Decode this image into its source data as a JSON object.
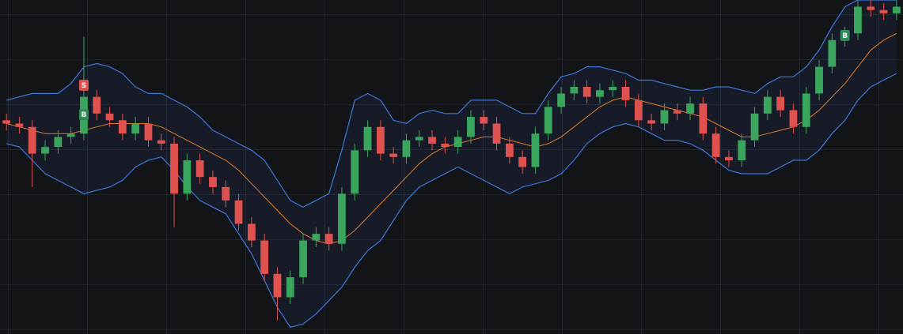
{
  "chart_data": {
    "type": "candlestick",
    "x": [
      0,
      1,
      2,
      3,
      4,
      5,
      6,
      7,
      8,
      9,
      10,
      11,
      12,
      13,
      14,
      15,
      16,
      17,
      18,
      19,
      20,
      21,
      22,
      23,
      24,
      25,
      26,
      27,
      28,
      29,
      30,
      31,
      32,
      33,
      34,
      35,
      36,
      37,
      38,
      39,
      40,
      41,
      42,
      43,
      44,
      45,
      46,
      47,
      48,
      49,
      50,
      51,
      52,
      53,
      54,
      55,
      56,
      57,
      58,
      59,
      60,
      61,
      62,
      63,
      64,
      65,
      66,
      67,
      68,
      69
    ],
    "open": [
      64,
      63,
      62,
      54,
      56,
      59,
      60,
      71,
      66,
      64,
      60,
      63,
      58,
      57,
      42,
      52,
      47,
      44,
      40,
      33,
      28,
      18,
      11,
      17,
      28,
      30,
      27,
      42,
      55,
      62,
      54,
      53,
      58,
      59,
      57,
      56,
      59,
      65,
      63,
      57,
      53,
      50,
      60,
      68,
      72,
      74,
      71,
      73,
      74,
      70,
      64,
      63,
      67,
      66,
      69,
      60,
      53,
      52,
      58,
      66,
      71,
      67,
      62,
      72,
      80,
      88,
      90,
      98,
      97,
      96
    ],
    "high": [
      66,
      65,
      64,
      58,
      61,
      62,
      89,
      73,
      68,
      66,
      65,
      65,
      60,
      59,
      54,
      54,
      49,
      46,
      42,
      35,
      30,
      20,
      19,
      30,
      32,
      32,
      44,
      57,
      64,
      64,
      56,
      60,
      61,
      61,
      59,
      61,
      67,
      67,
      65,
      59,
      55,
      62,
      70,
      74,
      76,
      76,
      75,
      76,
      76,
      72,
      66,
      69,
      69,
      71,
      71,
      62,
      55,
      60,
      68,
      73,
      73,
      69,
      74,
      82,
      90,
      92,
      100,
      100,
      99,
      100
    ],
    "low": [
      61,
      60,
      44,
      52,
      54,
      57,
      58,
      64,
      62,
      58,
      58,
      56,
      55,
      32,
      40,
      45,
      42,
      38,
      31,
      26,
      16,
      4,
      9,
      15,
      26,
      25,
      25,
      40,
      53,
      52,
      51,
      51,
      56,
      55,
      54,
      54,
      57,
      61,
      55,
      51,
      48,
      48,
      58,
      66,
      70,
      69,
      69,
      71,
      68,
      62,
      61,
      61,
      64,
      64,
      58,
      51,
      50,
      50,
      56,
      64,
      65,
      60,
      60,
      70,
      78,
      86,
      88,
      95,
      94,
      94
    ],
    "close": [
      63,
      62,
      54,
      56,
      59,
      60,
      71,
      66,
      64,
      60,
      63,
      58,
      57,
      42,
      52,
      47,
      44,
      40,
      33,
      28,
      18,
      11,
      17,
      28,
      30,
      27,
      42,
      55,
      62,
      54,
      53,
      58,
      59,
      57,
      56,
      59,
      65,
      63,
      57,
      53,
      50,
      60,
      68,
      72,
      74,
      71,
      73,
      74,
      70,
      64,
      63,
      67,
      66,
      69,
      60,
      53,
      52,
      58,
      66,
      71,
      67,
      62,
      72,
      80,
      88,
      90,
      98,
      97,
      96,
      98
    ],
    "middle": [
      63,
      62,
      61,
      60,
      60,
      60,
      61,
      62,
      63,
      63,
      63,
      63,
      62,
      60,
      58,
      56,
      54,
      52,
      49,
      45,
      41,
      37,
      33,
      30,
      28,
      27,
      28,
      31,
      35,
      39,
      43,
      47,
      51,
      54,
      56,
      57,
      58,
      59,
      59,
      58,
      57,
      56,
      57,
      59,
      62,
      65,
      68,
      70,
      71,
      70,
      69,
      68,
      67,
      66,
      65,
      63,
      61,
      59,
      59,
      60,
      61,
      62,
      64,
      67,
      71,
      75,
      80,
      85,
      88,
      90
    ],
    "upper": [
      70,
      71,
      72,
      72,
      72,
      75,
      80,
      81,
      80,
      78,
      74,
      72,
      72,
      70,
      68,
      65,
      61,
      59,
      57,
      55,
      52,
      46,
      40,
      38,
      40,
      42,
      55,
      70,
      72,
      70,
      64,
      63,
      66,
      67,
      66,
      66,
      70,
      70,
      70,
      68,
      66,
      66,
      72,
      77,
      78,
      80,
      80,
      79,
      78,
      76,
      76,
      75,
      74,
      73,
      73,
      74,
      74,
      73,
      72,
      75,
      77,
      77,
      80,
      85,
      92,
      98,
      100,
      100,
      100,
      100
    ],
    "lower": [
      57,
      56,
      52,
      48,
      46,
      44,
      42,
      43,
      44,
      46,
      50,
      52,
      53,
      49,
      44,
      40,
      38,
      36,
      30,
      24,
      16,
      8,
      2,
      3,
      6,
      10,
      14,
      20,
      25,
      28,
      34,
      40,
      44,
      46,
      48,
      50,
      48,
      46,
      44,
      42,
      44,
      45,
      46,
      48,
      52,
      57,
      60,
      62,
      63,
      62,
      60,
      58,
      58,
      57,
      55,
      52,
      49,
      48,
      48,
      48,
      50,
      52,
      52,
      55,
      60,
      64,
      70,
      74,
      76,
      78
    ],
    "markers": [
      {
        "label": "S",
        "x": 6,
        "value": 74.5,
        "color": "#e0524f"
      },
      {
        "label": "B",
        "x": 6,
        "value": 65.7,
        "color": "#2e8b57"
      },
      {
        "label": "B",
        "x": 65,
        "value": 89.4,
        "color": "#2e8b57"
      }
    ],
    "up_color": "#3aa55d",
    "down_color": "#e0524f",
    "band_color": "#3c78d8",
    "middle_color": "#e07b28",
    "xlim": [
      -0.5,
      69.5
    ],
    "ylim": [
      0,
      100
    ],
    "grid": true
  }
}
